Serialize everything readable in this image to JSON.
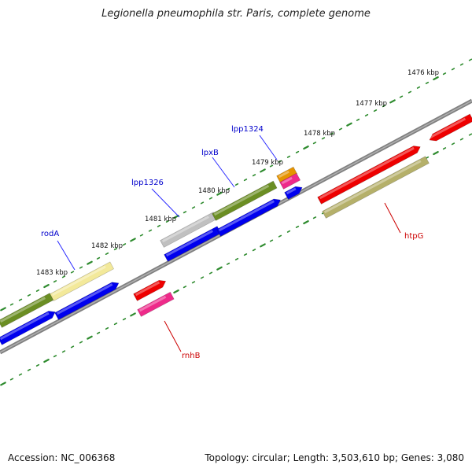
{
  "title": "Legionella pneumophila str. Paris, complete genome",
  "footer": {
    "accession": "Accession: NC_006368",
    "summary": "Topology: circular; Length: 3,503,610 bp; Genes: 3,080"
  },
  "ruler_labels": [
    "1476 kbp",
    "1477 kbp",
    "1478 kbp",
    "1479 kbp",
    "1480 kbp",
    "1481 kbp",
    "1482 kbp",
    "1483 kbp"
  ],
  "gene_labels": [
    {
      "name": "rodA",
      "color": "#0000cc"
    },
    {
      "name": "lpp1326",
      "color": "#0000cc"
    },
    {
      "name": "lpxB",
      "color": "#0000cc"
    },
    {
      "name": "lpp1324",
      "color": "#0000cc"
    },
    {
      "name": "htpG",
      "color": "#cc0000"
    },
    {
      "name": "rnhB",
      "color": "#cc0000"
    }
  ],
  "colors": {
    "backbone": "#808080",
    "tick": "#2e8b2e",
    "blue": "#0000ee",
    "red": "#ee0000",
    "olive": "#6b8e23",
    "khaki": "#b5b06a",
    "pale_yellow": "#f3e99a",
    "silver": "#c0c0c0",
    "magenta": "#ee2a8a",
    "orange": "#e69400"
  }
}
